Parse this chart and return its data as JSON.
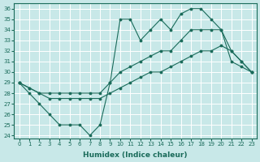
{
  "xlabel": "Humidex (Indice chaleur)",
  "bg_color": "#c8e8e8",
  "line_color": "#1a6b5a",
  "grid_color": "#ffffff",
  "xlim": [
    -0.5,
    23.5
  ],
  "ylim": [
    23.7,
    36.5
  ],
  "yticks": [
    24,
    25,
    26,
    27,
    28,
    29,
    30,
    31,
    32,
    33,
    34,
    35,
    36
  ],
  "xticks": [
    0,
    1,
    2,
    3,
    4,
    5,
    6,
    7,
    8,
    9,
    10,
    11,
    12,
    13,
    14,
    15,
    16,
    17,
    18,
    19,
    20,
    21,
    22,
    23
  ],
  "line1_x": [
    0,
    1,
    2,
    3,
    4,
    5,
    6,
    7,
    8,
    9,
    10,
    11,
    12,
    13,
    14,
    15,
    16,
    17,
    18,
    19,
    20,
    21,
    22,
    23
  ],
  "line1_y": [
    29,
    28,
    27,
    26,
    25,
    25,
    25,
    24,
    25,
    29,
    35,
    35,
    33,
    34,
    35,
    34,
    35.5,
    36,
    36,
    35,
    34,
    31,
    30.5,
    30
  ],
  "line2_x": [
    0,
    1,
    2,
    3,
    4,
    5,
    6,
    7,
    8,
    9,
    10,
    11,
    12,
    13,
    14,
    15,
    16,
    17,
    18,
    19,
    20,
    21,
    22,
    23
  ],
  "line2_y": [
    29,
    28.5,
    28,
    28,
    28,
    28,
    28,
    28,
    28,
    29,
    30,
    30.5,
    31,
    31.5,
    32,
    32,
    33,
    34,
    34,
    34,
    34,
    32,
    31,
    30
  ],
  "line3_x": [
    0,
    1,
    2,
    3,
    4,
    5,
    6,
    7,
    8,
    9,
    10,
    11,
    12,
    13,
    14,
    15,
    16,
    17,
    18,
    19,
    20,
    21,
    22,
    23
  ],
  "line3_y": [
    29,
    28.5,
    28,
    27.5,
    27.5,
    27.5,
    27.5,
    27.5,
    27.5,
    28,
    28.5,
    29,
    29.5,
    30,
    30,
    30.5,
    31,
    31.5,
    32,
    32,
    32.5,
    32,
    31,
    30
  ]
}
